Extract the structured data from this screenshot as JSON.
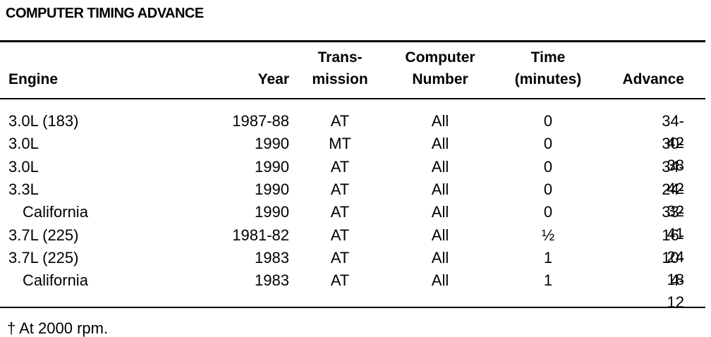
{
  "title": "COMPUTER TIMING ADVANCE",
  "table": {
    "header": [
      "Engine",
      "Year",
      "Trans-\nmission",
      "Computer\nNumber",
      "Time\n(minutes)",
      "Advance"
    ],
    "rows": [
      [
        "3.0L (183)",
        "1987-88",
        "AT",
        "All",
        "0",
        "34-42"
      ],
      [
        "3.0L",
        "1990",
        "MT",
        "All",
        "0",
        "30-38"
      ],
      [
        "3.0L",
        "1990",
        "AT",
        "All",
        "0",
        "34-42"
      ],
      [
        "3.3L",
        "1990",
        "AT",
        "All",
        "0",
        "24-32"
      ],
      [
        "California",
        "1990",
        "AT",
        "All",
        "0",
        "33-41"
      ],
      [
        "3.7L (225)",
        "1981-82",
        "AT",
        "All",
        "½",
        "16-24"
      ],
      [
        "3.7L (225)",
        "1983",
        "AT",
        "All",
        "1",
        "10-18"
      ],
      [
        "California",
        "1983",
        "AT",
        "All",
        "1",
        "4-12"
      ]
    ]
  },
  "footnote": "† At 2000 rpm."
}
